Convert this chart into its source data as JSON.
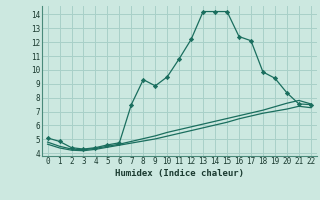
{
  "xlabel": "Humidex (Indice chaleur)",
  "bg_color": "#cce8e0",
  "grid_color": "#a8d0c8",
  "line_color": "#1a6e5e",
  "xlim": [
    -0.5,
    22.5
  ],
  "ylim": [
    3.8,
    14.6
  ],
  "xticks": [
    0,
    1,
    2,
    3,
    4,
    5,
    6,
    7,
    8,
    9,
    10,
    11,
    12,
    13,
    14,
    15,
    16,
    17,
    18,
    19,
    20,
    21,
    22
  ],
  "yticks": [
    4,
    5,
    6,
    7,
    8,
    9,
    10,
    11,
    12,
    13,
    14
  ],
  "line1_x": [
    0,
    1,
    2,
    3,
    4,
    5,
    6,
    7,
    8,
    9,
    10,
    11,
    12,
    13,
    14,
    15,
    16,
    17,
    18,
    19,
    20,
    21,
    22
  ],
  "line1_y": [
    5.1,
    4.85,
    4.4,
    4.3,
    4.4,
    4.6,
    4.75,
    7.5,
    9.3,
    8.85,
    9.5,
    10.8,
    12.2,
    14.2,
    14.2,
    14.2,
    12.4,
    12.1,
    9.85,
    9.4,
    8.35,
    7.55,
    7.5
  ],
  "line2_x": [
    0,
    1,
    2,
    3,
    4,
    5,
    6,
    7,
    8,
    9,
    10,
    11,
    12,
    13,
    14,
    15,
    16,
    17,
    18,
    19,
    20,
    21,
    22
  ],
  "line2_y": [
    4.8,
    4.5,
    4.3,
    4.25,
    4.35,
    4.5,
    4.65,
    4.85,
    5.05,
    5.25,
    5.5,
    5.7,
    5.9,
    6.1,
    6.3,
    6.5,
    6.7,
    6.9,
    7.1,
    7.35,
    7.6,
    7.8,
    7.55
  ],
  "line3_x": [
    0,
    1,
    2,
    3,
    4,
    5,
    6,
    7,
    8,
    9,
    10,
    11,
    12,
    13,
    14,
    15,
    16,
    17,
    18,
    19,
    20,
    21,
    22
  ],
  "line3_y": [
    4.65,
    4.38,
    4.22,
    4.18,
    4.28,
    4.43,
    4.58,
    4.73,
    4.88,
    5.03,
    5.23,
    5.43,
    5.63,
    5.83,
    6.03,
    6.23,
    6.48,
    6.68,
    6.88,
    7.03,
    7.18,
    7.38,
    7.28
  ]
}
